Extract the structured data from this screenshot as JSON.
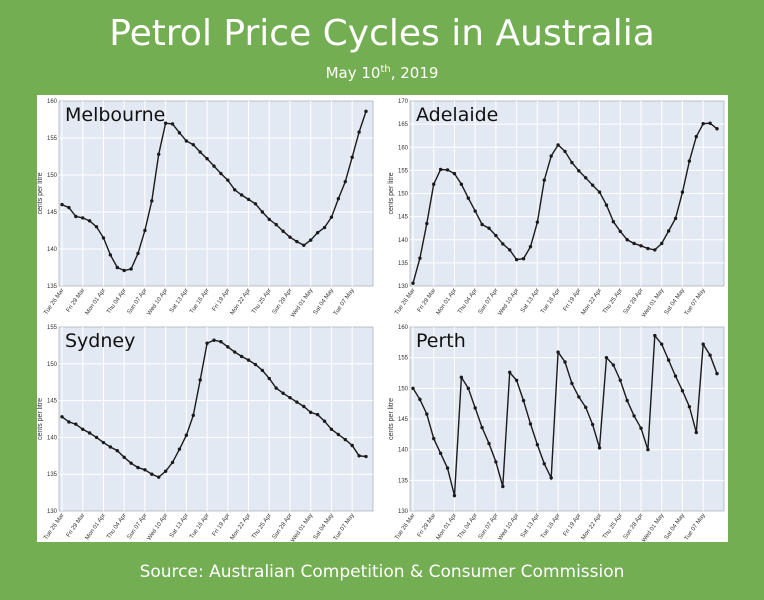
{
  "title": "Petrol Price Cycles in Australia",
  "subtitle": {
    "prefix": "May 10",
    "sup": "th",
    "suffix": ", 2019"
  },
  "source": "Source: Australian Competition & Consumer Commission",
  "colors": {
    "background": "#74ae53",
    "plot_bg": "#e3e9f3",
    "line": "#1a1a1a",
    "grid": "#ffffff"
  },
  "chart_data": [
    {
      "type": "line",
      "title": "Melbourne",
      "ylabel": "cents per litre",
      "ylim": [
        135,
        160
      ],
      "yticks": [
        135,
        140,
        145,
        150,
        155,
        160
      ],
      "xlabels": [
        "Tue 26 Mar",
        "Fri 29 Mar",
        "Mon 01 Apr",
        "Thu 04 Apr",
        "Sun 07 Apr",
        "Wed 10 Apr",
        "Sat 13 Apr",
        "Tue 16 Apr",
        "Fri 19 Apr",
        "Mon 22 Apr",
        "Thu 25 Apr",
        "Sun 28 Apr",
        "Wed 01 May",
        "Sat 04 May",
        "Tue 07 May"
      ],
      "series": [
        {
          "values": [
            146.0,
            145.6,
            144.4,
            144.2,
            143.8,
            143.0,
            141.5,
            139.2,
            137.5,
            137.1,
            137.3,
            139.4,
            142.5,
            146.5,
            152.8,
            157.0,
            156.9,
            155.7,
            154.6,
            154.1,
            153.1,
            152.2,
            151.2,
            150.2,
            149.3,
            148.0,
            147.3,
            146.7,
            146.1,
            145.0,
            144.0,
            143.3,
            142.4,
            141.6,
            141.0,
            140.5,
            141.2,
            142.2,
            142.9,
            144.3,
            146.8,
            149.1,
            152.4,
            155.8,
            158.6
          ]
        }
      ]
    },
    {
      "type": "line",
      "title": "Adelaide",
      "ylabel": "cents per litre",
      "ylim": [
        130,
        170
      ],
      "yticks": [
        130,
        135,
        140,
        145,
        150,
        155,
        160,
        165,
        170
      ],
      "xlabels": [
        "Tue 26 Mar",
        "Fri 29 Mar",
        "Mon 01 Apr",
        "Thu 04 Apr",
        "Sun 07 Apr",
        "Wed 10 Apr",
        "Sat 13 Apr",
        "Tue 16 Apr",
        "Fri 19 Apr",
        "Mon 22 Apr",
        "Thu 25 Apr",
        "Sun 28 Apr",
        "Wed 01 May",
        "Sat 04 May",
        "Tue 07 May"
      ],
      "series": [
        {
          "values": [
            130.6,
            136.0,
            143.5,
            152.0,
            155.2,
            155.1,
            154.3,
            152.0,
            149.0,
            146.2,
            143.3,
            142.5,
            140.9,
            139.1,
            137.8,
            135.7,
            135.9,
            138.5,
            143.8,
            152.9,
            158.1,
            160.5,
            159.1,
            156.7,
            154.9,
            153.4,
            151.8,
            150.3,
            147.5,
            143.9,
            141.8,
            140.0,
            139.2,
            138.7,
            138.1,
            137.8,
            139.2,
            141.9,
            144.6,
            150.3,
            157.0,
            162.3,
            165.1,
            165.2,
            164.0
          ]
        }
      ]
    },
    {
      "type": "line",
      "title": "Sydney",
      "ylabel": "cents per litre",
      "ylim": [
        130,
        155
      ],
      "yticks": [
        130,
        135,
        140,
        145,
        150,
        155
      ],
      "xlabels": [
        "Tue 26 Mar",
        "Fri 29 Mar",
        "Mon 01 Apr",
        "Thu 04 Apr",
        "Sun 07 Apr",
        "Wed 10 Apr",
        "Sat 13 Apr",
        "Tue 16 Apr",
        "Fri 19 Apr",
        "Mon 22 Apr",
        "Thu 25 Apr",
        "Sun 28 Apr",
        "Wed 01 May",
        "Sat 04 May",
        "Tue 07 May"
      ],
      "series": [
        {
          "values": [
            142.8,
            142.1,
            141.8,
            141.1,
            140.6,
            140.0,
            139.3,
            138.7,
            138.2,
            137.3,
            136.5,
            135.9,
            135.6,
            135.0,
            134.6,
            135.4,
            136.6,
            138.4,
            140.3,
            143.0,
            147.8,
            152.8,
            153.2,
            153.0,
            152.3,
            151.6,
            151.0,
            150.5,
            149.9,
            149.1,
            148.0,
            146.7,
            146.0,
            145.4,
            144.8,
            144.2,
            143.4,
            143.1,
            142.2,
            141.1,
            140.4,
            139.7,
            138.9,
            137.5,
            137.4
          ]
        }
      ]
    },
    {
      "type": "line",
      "title": "Perth",
      "ylabel": "cents per litre",
      "ylim": [
        130,
        160
      ],
      "yticks": [
        130,
        135,
        140,
        145,
        150,
        155,
        160
      ],
      "xlabels": [
        "Tue 26 Mar",
        "Fri 29 Mar",
        "Mon 01 Apr",
        "Thu 04 Apr",
        "Sun 07 Apr",
        "Wed 10 Apr",
        "Sat 13 Apr",
        "Tue 16 Apr",
        "Fri 19 Apr",
        "Mon 22 Apr",
        "Thu 25 Apr",
        "Sun 28 Apr",
        "Wed 01 May",
        "Sat 04 May",
        "Tue 07 May"
      ],
      "series": [
        {
          "values": [
            150.0,
            148.2,
            145.8,
            141.8,
            139.4,
            137.0,
            132.5,
            151.8,
            150.0,
            146.8,
            143.6,
            141.0,
            138.0,
            134.0,
            152.6,
            151.3,
            148.0,
            144.2,
            140.8,
            137.7,
            135.4,
            155.9,
            154.3,
            150.8,
            148.6,
            146.9,
            144.1,
            140.3,
            155.0,
            153.8,
            151.3,
            148.0,
            145.5,
            143.5,
            140.0,
            158.6,
            157.2,
            154.6,
            152.0,
            149.6,
            147.0,
            142.8,
            157.2,
            155.4,
            152.4
          ]
        }
      ]
    }
  ]
}
